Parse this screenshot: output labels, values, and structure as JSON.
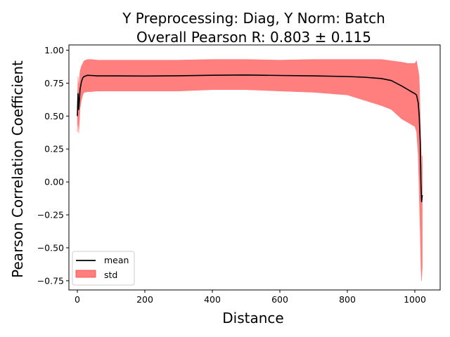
{
  "chart_data": {
    "type": "line",
    "title": "Y Preprocessing: Diag, Y Norm: Batch",
    "subtitle": "Overall Pearson R: 0.803 ± 0.115",
    "xlabel": "Distance",
    "ylabel": "Pearson Correlation Coefficient",
    "xlim": [
      -25,
      1075
    ],
    "ylim": [
      -0.82,
      1.04
    ],
    "xticks": [
      0,
      200,
      400,
      600,
      800,
      1000
    ],
    "yticks": [
      -0.75,
      -0.5,
      -0.25,
      0.0,
      0.25,
      0.5,
      0.75,
      1.0
    ],
    "xtick_labels": [
      "0",
      "200",
      "400",
      "600",
      "800",
      "1000"
    ],
    "ytick_labels": [
      "−0.75",
      "−0.50",
      "−0.25",
      "0.00",
      "0.25",
      "0.50",
      "0.75",
      "1.00"
    ],
    "grid": false,
    "legend": {
      "position": "lower-left",
      "entries": [
        "mean",
        "std"
      ]
    },
    "series": [
      {
        "name": "mean",
        "style": "line",
        "color": "#000000",
        "x": [
          0,
          2,
          4,
          6,
          8,
          12,
          16,
          20,
          25,
          30,
          40,
          60,
          100,
          200,
          300,
          400,
          500,
          600,
          700,
          800,
          850,
          900,
          930,
          960,
          980,
          1000,
          1005,
          1010,
          1013,
          1016,
          1018,
          1020,
          1022
        ],
        "y": [
          0.5,
          0.67,
          0.55,
          0.62,
          0.7,
          0.76,
          0.79,
          0.8,
          0.805,
          0.81,
          0.808,
          0.805,
          0.805,
          0.804,
          0.806,
          0.81,
          0.812,
          0.808,
          0.805,
          0.8,
          0.795,
          0.785,
          0.77,
          0.73,
          0.7,
          0.67,
          0.66,
          0.6,
          0.5,
          0.3,
          0.0,
          -0.15,
          -0.1
        ]
      },
      {
        "name": "std",
        "style": "band",
        "color": "#ff7f7f",
        "x": [
          0,
          2,
          4,
          6,
          8,
          12,
          16,
          20,
          25,
          30,
          40,
          60,
          100,
          200,
          300,
          400,
          500,
          600,
          700,
          800,
          850,
          900,
          930,
          960,
          980,
          1000,
          1005,
          1010,
          1013,
          1016,
          1018,
          1020,
          1022
        ],
        "lower": [
          0.38,
          0.48,
          0.37,
          0.45,
          0.55,
          0.62,
          0.66,
          0.68,
          0.68,
          0.685,
          0.685,
          0.69,
          0.69,
          0.69,
          0.69,
          0.7,
          0.7,
          0.69,
          0.68,
          0.66,
          0.62,
          0.58,
          0.55,
          0.48,
          0.45,
          0.42,
          0.38,
          0.2,
          -0.1,
          -0.4,
          -0.65,
          -0.75,
          -0.65
        ],
        "upper": [
          0.62,
          0.8,
          0.72,
          0.78,
          0.84,
          0.88,
          0.9,
          0.92,
          0.925,
          0.93,
          0.93,
          0.925,
          0.925,
          0.925,
          0.925,
          0.93,
          0.93,
          0.925,
          0.93,
          0.93,
          0.93,
          0.93,
          0.92,
          0.91,
          0.9,
          0.9,
          0.92,
          0.85,
          0.8,
          0.5,
          0.3,
          0.1,
          0.2
        ]
      }
    ]
  }
}
